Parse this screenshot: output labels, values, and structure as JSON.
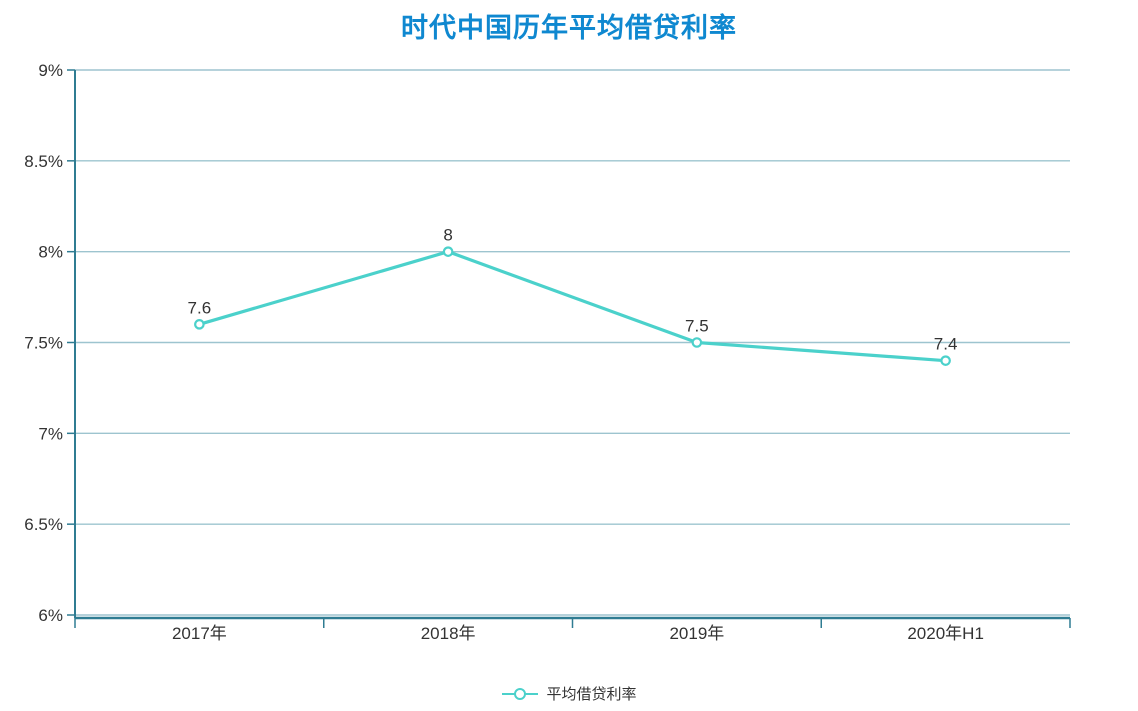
{
  "title": "时代中国历年平均借贷利率",
  "legend": {
    "label": "平均借贷利率"
  },
  "colors": {
    "title": "#0f88d0",
    "line": "#4bd1cb",
    "marker_fill": "#ffffff",
    "axis": "#2f7c92",
    "grid": "#9dc4cf",
    "text": "#333333"
  },
  "chart_data": {
    "type": "line",
    "title": "时代中国历年平均借贷利率",
    "categories": [
      "2017年",
      "2018年",
      "2019年",
      "2020年H1"
    ],
    "series": [
      {
        "name": "平均借贷利率",
        "values": [
          7.6,
          8,
          7.5,
          7.4
        ]
      }
    ],
    "point_labels": [
      "7.6",
      "8",
      "7.5",
      "7.4"
    ],
    "xlabel": "",
    "ylabel": "",
    "ylim": [
      6,
      9
    ],
    "y_ticks": [
      6,
      6.5,
      7,
      7.5,
      8,
      8.5,
      9
    ],
    "y_tick_labels": [
      "6%",
      "6.5%",
      "7%",
      "7.5%",
      "8%",
      "8.5%",
      "9%"
    ],
    "grid": true,
    "legend_position": "bottom"
  }
}
